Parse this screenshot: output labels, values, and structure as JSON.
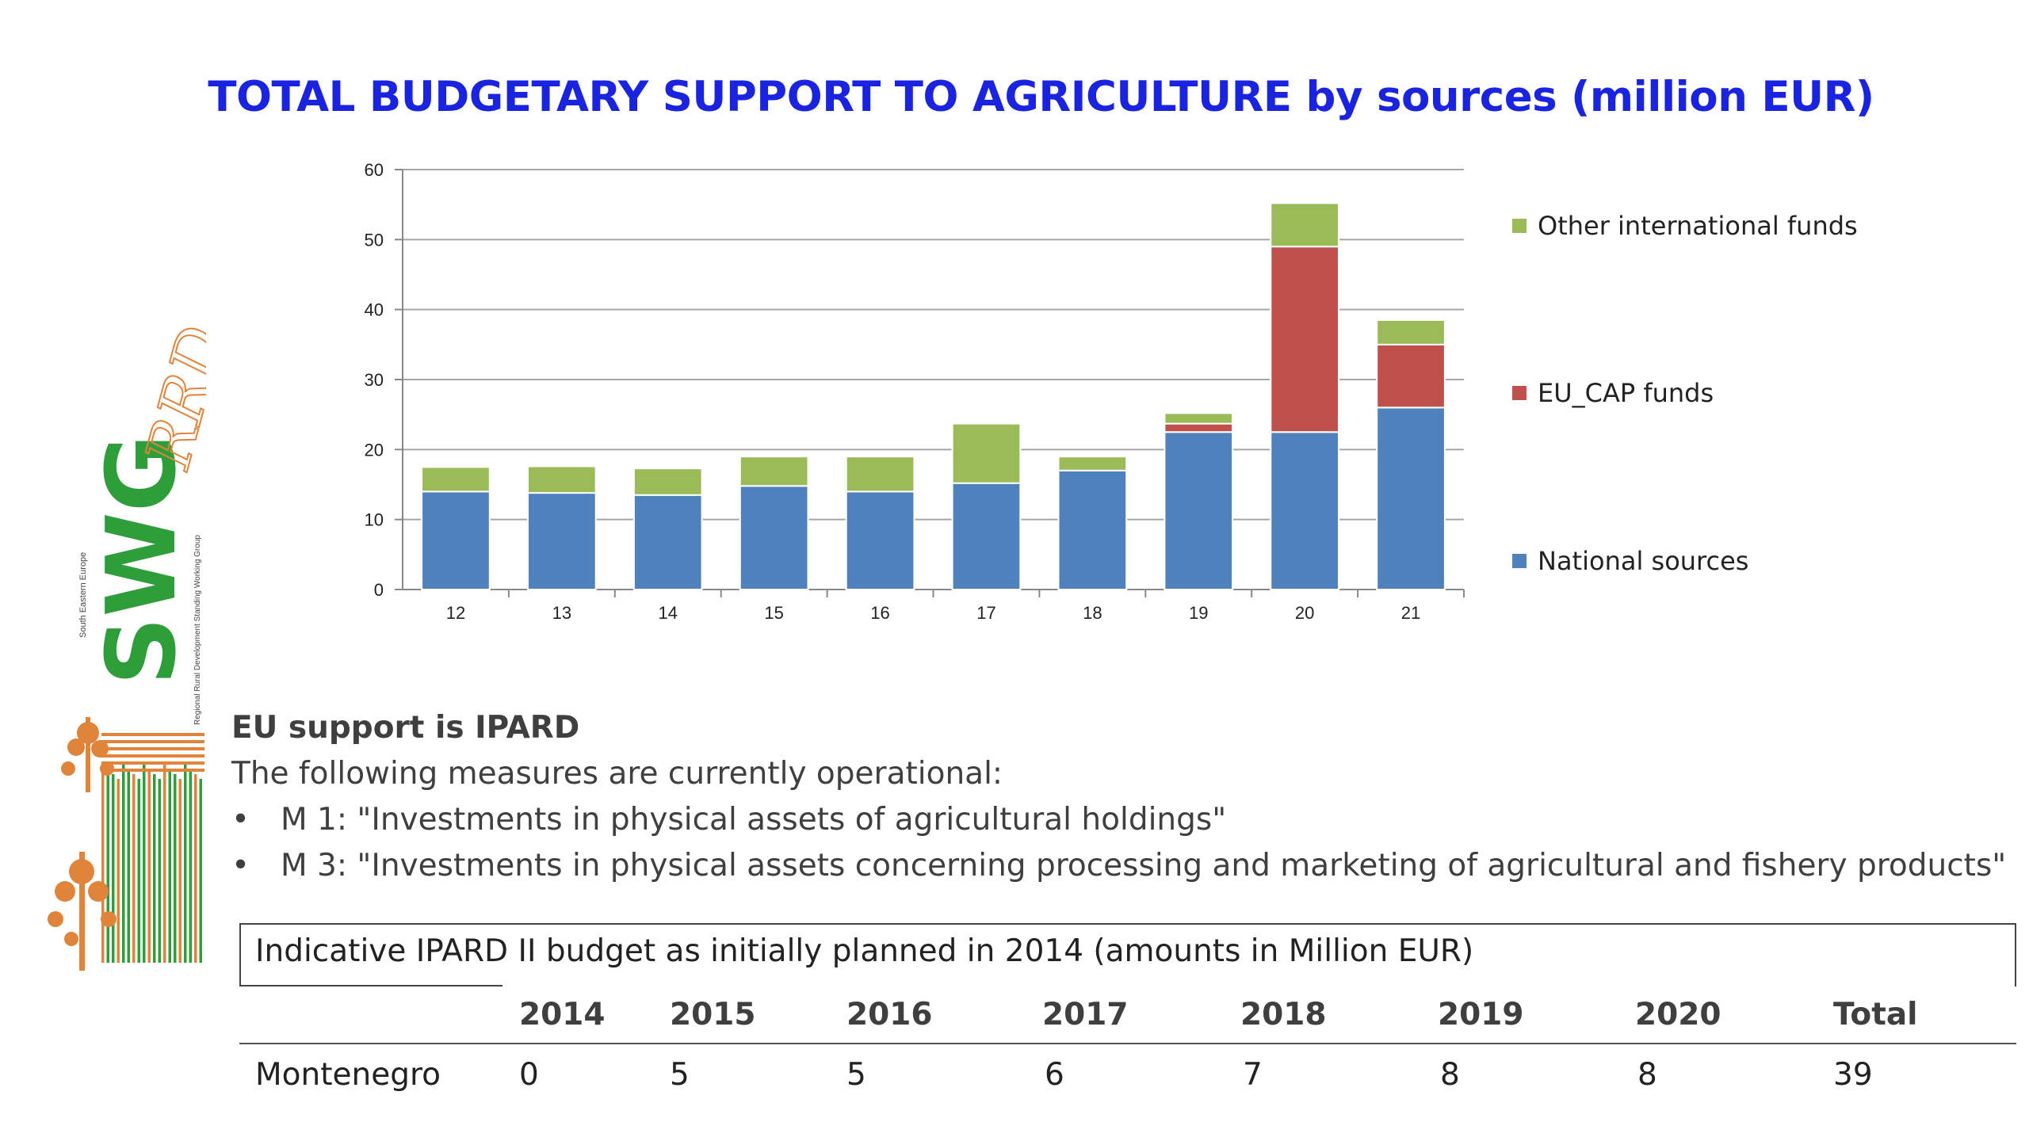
{
  "chart_data": {
    "type": "bar",
    "stacked": true,
    "title": "TOTAL BUDGETARY SUPPORT TO AGRICULTURE by sources (million EUR)",
    "categories": [
      "12",
      "13",
      "14",
      "15",
      "16",
      "17",
      "18",
      "19",
      "20",
      "21"
    ],
    "series": [
      {
        "name": "National sources",
        "color": "#4f81bd",
        "values": [
          14,
          13.8,
          13.5,
          14.8,
          14,
          15.2,
          17,
          22.5,
          22.5,
          26
        ]
      },
      {
        "name": "EU_CAP funds",
        "color": "#c0504d",
        "values": [
          0,
          0,
          0,
          0,
          0,
          0,
          0,
          1.2,
          26.5,
          9
        ]
      },
      {
        "name": "Other international funds",
        "color": "#9bbb59",
        "values": [
          3.5,
          3.8,
          3.8,
          4.2,
          5,
          8.5,
          2,
          1.5,
          6.2,
          3.5
        ]
      }
    ],
    "ylim": [
      0,
      60
    ],
    "yticks": [
      0,
      10,
      20,
      30,
      40,
      50,
      60
    ],
    "grid": true,
    "legend_position": "right"
  },
  "legend_order": [
    "Other international funds",
    "EU_CAP funds",
    "National sources"
  ],
  "text": {
    "heading": "EU support is IPARD",
    "intro": "The following measures are currently operational:",
    "bullets": [
      "M 1: \"Investments in physical assets of agricultural holdings\"",
      "M 3: \"Investments in physical assets concerning processing and marketing of agricultural and fishery products\""
    ],
    "bullet_symbol": "•"
  },
  "budget_table": {
    "caption": "Indicative IPARD II budget as initially planned in 2014 (amounts in Million EUR)",
    "headers": [
      "2014",
      "2015",
      "2016",
      "2017",
      "2018",
      "2019",
      "2020",
      "Total"
    ],
    "rows": [
      {
        "label": "Montenegro",
        "values": [
          "0",
          "5",
          "5",
          "6",
          "7",
          "8",
          "8",
          "39"
        ]
      }
    ]
  },
  "logo": {
    "wordmark": "SWG",
    "suffix": "RRD",
    "vertical_top": "South Eastern Europe",
    "vertical_bottom": "Regional Rural Development Standing Working Group",
    "colors": {
      "green": "#2e9e3a",
      "orange": "#e0843c"
    },
    "icon": "tree-barcode-icon"
  }
}
